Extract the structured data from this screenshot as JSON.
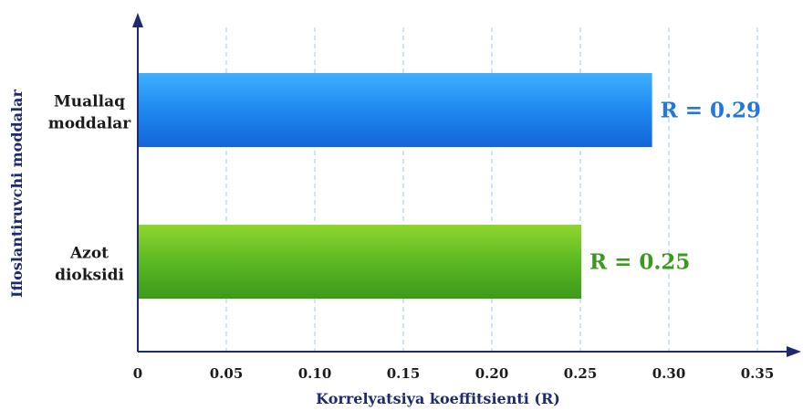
{
  "chart_data": {
    "type": "bar",
    "orientation": "horizontal",
    "categories": [
      "Muallaq moddalar",
      "Azot dioksidi"
    ],
    "category_lines": [
      [
        "Muallaq",
        "moddalar"
      ],
      [
        "Azot",
        "dioksidi"
      ]
    ],
    "values": [
      0.29,
      0.25
    ],
    "data_labels": [
      "R = 0.29",
      "R = 0.25"
    ],
    "colors": [
      "#1e88f0",
      "#4caf1e"
    ],
    "label_colors": [
      "#2176e0",
      "#3a9a1c"
    ],
    "xlabel": "Korrelyatsiya koeffitsienti (R)",
    "ylabel": "Ifloslantiruvchi moddalar",
    "xlim": [
      0,
      0.35
    ],
    "xticks": [
      "0",
      "0.05",
      "0.10",
      "0.15",
      "0.20",
      "0.25",
      "0.30",
      "0.35"
    ],
    "xtick_values": [
      0,
      0.05,
      0.1,
      0.15,
      0.2,
      0.25,
      0.3,
      0.35
    ],
    "grid": "vertical-dashed",
    "axis_color": "#1d2a6e"
  }
}
